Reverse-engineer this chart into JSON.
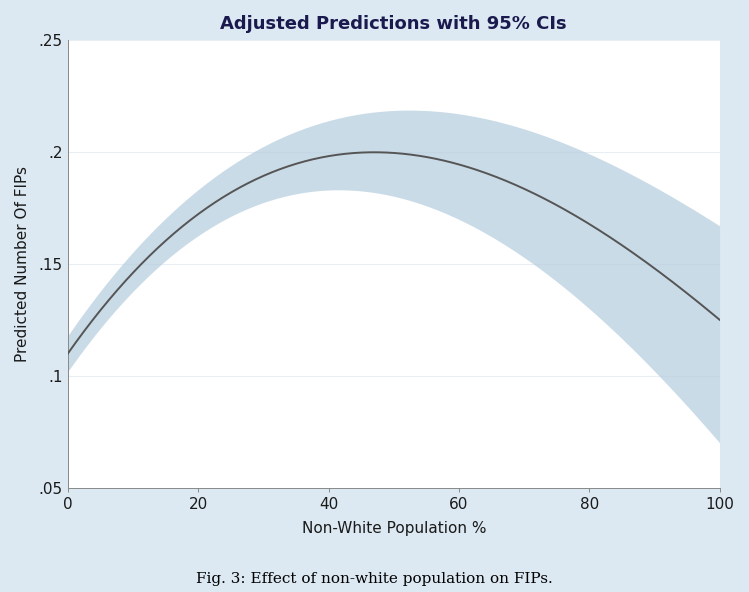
{
  "title": "Adjusted Predictions with 95% CIs",
  "xlabel": "Non-White Population %",
  "ylabel": "Predicted Number Of FIPs",
  "caption": "Fig. 3: Effect of non-white population on FIPs.",
  "xlim": [
    0,
    100
  ],
  "ylim": [
    0.05,
    0.25
  ],
  "xticks": [
    0,
    20,
    40,
    60,
    80,
    100
  ],
  "yticks": [
    0.05,
    0.1,
    0.15,
    0.2,
    0.25
  ],
  "ytick_labels": [
    ".05",
    ".1",
    ".15",
    ".2",
    ".25"
  ],
  "figure_bg_color": "#dce9f2",
  "plot_bg_color": "#ffffff",
  "line_color": "#555555",
  "ci_color": "#b8cfe0",
  "ci_alpha": 0.75,
  "gridline_color": "#e8eef3",
  "title_color": "#1a1a4e",
  "axis_label_color": "#1a1a1a",
  "tick_label_color": "#1a1a1a"
}
